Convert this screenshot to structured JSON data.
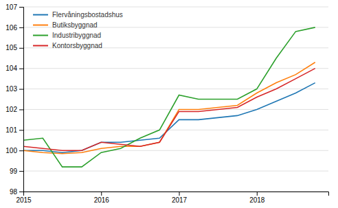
{
  "chart_data": {
    "type": "line",
    "x": [
      2015.0,
      2015.25,
      2015.5,
      2015.75,
      2016.0,
      2016.25,
      2016.5,
      2016.75,
      2017.0,
      2017.25,
      2017.5,
      2017.75,
      2018.0,
      2018.25,
      2018.5,
      2018.75
    ],
    "series": [
      {
        "name": "Flervåningsbostadshus",
        "values": [
          100.0,
          100.0,
          99.9,
          100.0,
          100.4,
          100.4,
          100.5,
          100.6,
          101.5,
          101.5,
          101.6,
          101.7,
          102.0,
          102.4,
          102.8,
          103.3
        ]
      },
      {
        "name": "Butiksbyggnad",
        "values": [
          100.0,
          99.9,
          99.85,
          99.9,
          100.1,
          100.2,
          100.2,
          100.4,
          102.0,
          102.0,
          102.1,
          102.2,
          102.8,
          103.3,
          103.7,
          104.3
        ]
      },
      {
        "name": "Industribyggnad",
        "values": [
          100.5,
          100.6,
          99.2,
          99.2,
          99.9,
          100.1,
          100.6,
          101.0,
          102.7,
          102.5,
          102.5,
          102.5,
          103.0,
          104.5,
          105.8,
          106.0
        ]
      },
      {
        "name": "Kontorsbyggnad",
        "values": [
          100.2,
          100.1,
          100.0,
          100.0,
          100.4,
          100.3,
          100.2,
          100.4,
          101.9,
          101.9,
          102.0,
          102.1,
          102.6,
          103.0,
          103.5,
          104.0
        ]
      }
    ],
    "xlim": [
      2015.0,
      2018.92
    ],
    "ylim": [
      98,
      107
    ],
    "xticks": [
      2015,
      2016,
      2017,
      2018
    ],
    "yticks": [
      98,
      99,
      100,
      101,
      102,
      103,
      104,
      105,
      106,
      107
    ],
    "grid": true,
    "legend": "upper left"
  }
}
